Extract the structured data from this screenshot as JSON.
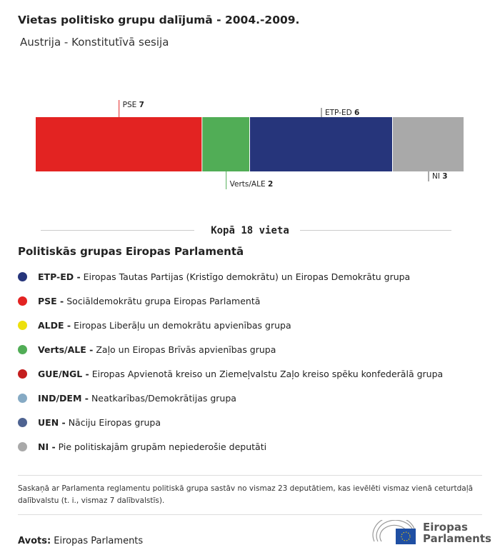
{
  "title": "Vietas politisko grupu dalījumā - 2004.-2009.",
  "subtitle": "Austrija - Konstitutīvā sesija",
  "chart_data": {
    "type": "bar",
    "orientation": "stacked-horizontal",
    "categories": [
      "PSE",
      "Verts/ALE",
      "ETP-ED",
      "NI"
    ],
    "values": [
      7,
      2,
      6,
      3
    ],
    "colors": [
      "#e32322",
      "#51ad56",
      "#26357b",
      "#a9a9a9"
    ],
    "label_side": [
      "top",
      "bottom",
      "top",
      "bottom"
    ],
    "total": 18
  },
  "total_label": "Kopā 18 vieta",
  "legend_title": "Politiskās grupas Eiropas Parlamentā",
  "legend": [
    {
      "abbr": "ETP-ED -",
      "desc": "Eiropas Tautas Partijas (Kristīgo demokrātu) un Eiropas Demokrātu grupa",
      "color": "#26357b"
    },
    {
      "abbr": "PSE -",
      "desc": "Sociāldemokrātu grupa Eiropas Parlamentā",
      "color": "#e32322"
    },
    {
      "abbr": "ALDE -",
      "desc": "Eiropas Liberāļu un demokrātu apvienības grupa",
      "color": "#ede00c"
    },
    {
      "abbr": "Verts/ALE -",
      "desc": "Zaļo un Eiropas Brīvās apvienības grupa",
      "color": "#51ad56"
    },
    {
      "abbr": "GUE/NGL -",
      "desc": "Eiropas Apvienotā kreiso un Ziemeļvalstu Zaļo kreiso spēku konfederālā grupa",
      "color": "#c41e1e"
    },
    {
      "abbr": "IND/DEM -",
      "desc": "Neatkarības/Demokrātijas grupa",
      "color": "#86aac4"
    },
    {
      "abbr": "UEN -",
      "desc": "Nāciju Eiropas grupa",
      "color": "#4e6391"
    },
    {
      "abbr": "NI -",
      "desc": "Pie politiskajām grupām nepiederošie deputāti",
      "color": "#a9a9a9"
    }
  ],
  "note": "Saskaņā ar Parlamenta reglamentu politiskā grupa sastāv no vismaz 23 deputātiem, kas ievēlēti vismaz vienā ceturtdaļā dalībvalstu (t. i., vismaz 7 dalībvalstīs).",
  "source_label": "Avots:",
  "source": "Eiropas Parlaments",
  "logo_line1": "Eiropas",
  "logo_line2": "Parlaments"
}
